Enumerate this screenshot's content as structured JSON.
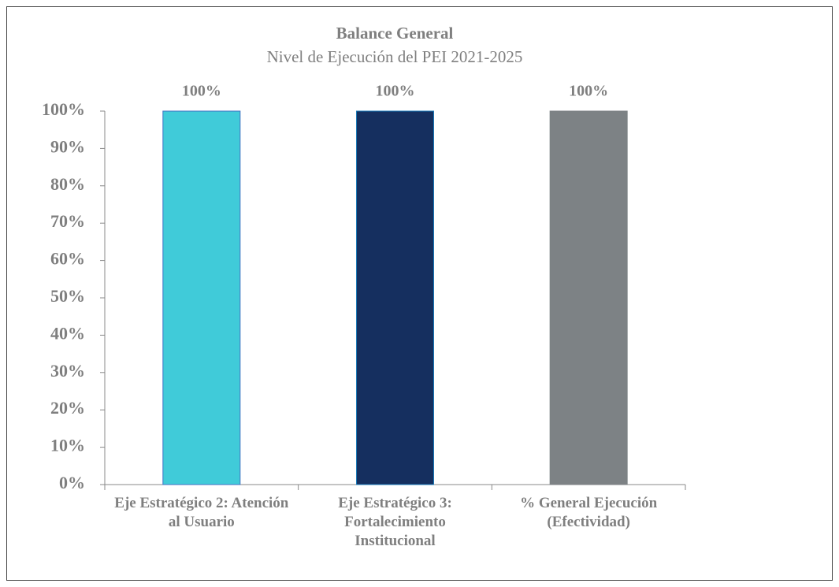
{
  "chart_data": {
    "type": "bar",
    "title": "Balance General",
    "subtitle": "Nivel de Ejecución del PEI 2021-2025",
    "categories": [
      "Eje Estratégico 2: Atención al Usuario",
      "Eje Estratégico 3: Fortalecimiento Institucional",
      "% General Ejecución (Efectividad)"
    ],
    "values": [
      100,
      100,
      100
    ],
    "value_labels": [
      "100%",
      "100%",
      "100%"
    ],
    "colors": [
      "#40cbd9",
      "#152f5f",
      "#7d8285"
    ],
    "ylim": [
      0,
      100
    ],
    "yticks": [
      {
        "value": 0,
        "label": "0%"
      },
      {
        "value": 10,
        "label": "10%"
      },
      {
        "value": 20,
        "label": "20%"
      },
      {
        "value": 30,
        "label": "30%"
      },
      {
        "value": 40,
        "label": "40%"
      },
      {
        "value": 50,
        "label": "50%"
      },
      {
        "value": 60,
        "label": "60%"
      },
      {
        "value": 70,
        "label": "70%"
      },
      {
        "value": 80,
        "label": "80%"
      },
      {
        "value": 90,
        "label": "90%"
      },
      {
        "value": 100,
        "label": "100%"
      }
    ],
    "grid": false
  }
}
